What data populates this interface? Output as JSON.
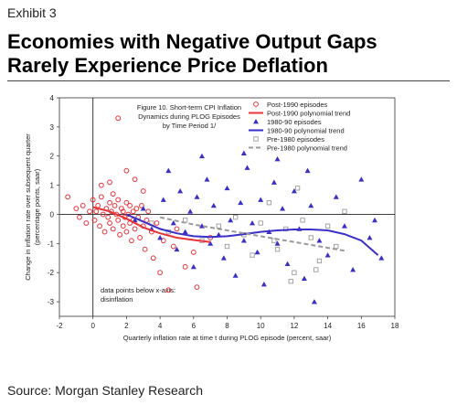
{
  "header": {
    "exhibit": "Exhibit 3",
    "title_line1": "Economies with Negative Output Gaps",
    "title_line2": "Rarely Experience Price Deflation"
  },
  "footer": {
    "source": "Source: Morgan Stanley Research"
  },
  "chart_data": {
    "type": "scatter",
    "title_lines": [
      "Figure 10. Short-term CPI Inflation",
      "Dynamics during PLOG Episodes",
      "by Time Period 1/"
    ],
    "xlabel": "Quarterly inflation rate at time t during PLOG episode (percent, saar)",
    "ylabel_lines": [
      "Change in inflation rate over subsequent quarter",
      "(percentage points, saar)"
    ],
    "xlim": [
      -2,
      18
    ],
    "ylim": [
      -3.5,
      4
    ],
    "xticks": [
      -2,
      0,
      2,
      4,
      6,
      8,
      10,
      12,
      14,
      16,
      18
    ],
    "yticks": [
      4,
      3,
      2,
      1,
      0,
      -1,
      -2,
      -3
    ],
    "annotation": [
      "data points below x-axis:",
      "disinflation"
    ],
    "colors": {
      "post1990": "#e8333a",
      "p1980_90": "#3a2fc7",
      "pre1980": "#9a9a9a"
    },
    "series": [
      {
        "name": "Post-1990 episodes",
        "marker": "circle",
        "points": [
          [
            -1.5,
            0.6
          ],
          [
            -1.0,
            0.2
          ],
          [
            -0.8,
            -0.1
          ],
          [
            -0.6,
            0.3
          ],
          [
            -0.4,
            -0.3
          ],
          [
            -0.2,
            0.1
          ],
          [
            0.0,
            0.5
          ],
          [
            0.1,
            -0.2
          ],
          [
            0.2,
            0.1
          ],
          [
            0.3,
            0.3
          ],
          [
            0.4,
            -0.4
          ],
          [
            0.5,
            0.6
          ],
          [
            0.6,
            0.0
          ],
          [
            0.7,
            -0.6
          ],
          [
            0.8,
            0.2
          ],
          [
            0.9,
            -0.1
          ],
          [
            1.0,
            0.4
          ],
          [
            1.0,
            -0.3
          ],
          [
            1.1,
            0.1
          ],
          [
            1.2,
            0.7
          ],
          [
            1.2,
            -0.5
          ],
          [
            1.3,
            0.3
          ],
          [
            1.4,
            0.0
          ],
          [
            1.5,
            -0.2
          ],
          [
            1.5,
            0.5
          ],
          [
            1.6,
            -0.7
          ],
          [
            1.7,
            0.2
          ],
          [
            1.8,
            -0.4
          ],
          [
            1.8,
            0.1
          ],
          [
            1.9,
            -0.1
          ],
          [
            2.0,
            0.4
          ],
          [
            2.0,
            -0.6
          ],
          [
            2.1,
            0.0
          ],
          [
            2.2,
            -0.3
          ],
          [
            2.2,
            0.3
          ],
          [
            2.3,
            -0.9
          ],
          [
            2.4,
            0.1
          ],
          [
            2.4,
            -0.2
          ],
          [
            2.5,
            -0.5
          ],
          [
            2.6,
            0.2
          ],
          [
            2.7,
            -0.1
          ],
          [
            2.8,
            -0.8
          ],
          [
            2.9,
            0.3
          ],
          [
            3.0,
            -0.4
          ],
          [
            3.1,
            -1.2
          ],
          [
            3.2,
            -0.2
          ],
          [
            3.3,
            0.1
          ],
          [
            3.5,
            -0.6
          ],
          [
            3.6,
            -1.5
          ],
          [
            3.8,
            -0.3
          ],
          [
            4.0,
            -2.0
          ],
          [
            4.2,
            -0.9
          ],
          [
            4.5,
            -2.6
          ],
          [
            4.8,
            -1.1
          ],
          [
            5.0,
            -0.5
          ],
          [
            5.5,
            -1.8
          ],
          [
            6.0,
            -1.3
          ],
          [
            6.2,
            -2.5
          ],
          [
            7.0,
            -0.8
          ],
          [
            1.5,
            3.3
          ],
          [
            2.0,
            1.5
          ],
          [
            0.5,
            1.0
          ],
          [
            3.0,
            0.8
          ],
          [
            2.5,
            1.2
          ],
          [
            1.0,
            1.1
          ]
        ]
      },
      {
        "name": "Post-1990 polynomial trend",
        "line": "solid",
        "points": [
          [
            0.0,
            0.25
          ],
          [
            1.0,
            0.1
          ],
          [
            2.0,
            -0.15
          ],
          [
            3.0,
            -0.45
          ],
          [
            4.0,
            -0.65
          ],
          [
            5.0,
            -0.8
          ],
          [
            6.0,
            -0.88
          ],
          [
            7.0,
            -0.95
          ]
        ]
      },
      {
        "name": "1980-90 episodes",
        "marker": "triangle",
        "points": [
          [
            2.5,
            -0.2
          ],
          [
            3.0,
            0.2
          ],
          [
            3.5,
            -0.5
          ],
          [
            4.0,
            -0.8
          ],
          [
            4.2,
            0.5
          ],
          [
            4.5,
            1.5
          ],
          [
            4.8,
            -0.3
          ],
          [
            5.0,
            -1.2
          ],
          [
            5.2,
            0.8
          ],
          [
            5.5,
            -0.6
          ],
          [
            5.8,
            0.1
          ],
          [
            6.0,
            -1.8
          ],
          [
            6.2,
            0.6
          ],
          [
            6.5,
            -0.4
          ],
          [
            6.8,
            1.2
          ],
          [
            7.0,
            -1.0
          ],
          [
            7.2,
            0.3
          ],
          [
            7.5,
            -0.7
          ],
          [
            7.8,
            -1.5
          ],
          [
            8.0,
            0.9
          ],
          [
            8.2,
            -0.2
          ],
          [
            8.5,
            -2.1
          ],
          [
            8.8,
            0.4
          ],
          [
            9.0,
            -0.9
          ],
          [
            9.2,
            1.6
          ],
          [
            9.5,
            -0.3
          ],
          [
            9.8,
            -1.3
          ],
          [
            10.0,
            0.5
          ],
          [
            10.2,
            -2.4
          ],
          [
            10.5,
            -0.6
          ],
          [
            10.8,
            1.1
          ],
          [
            11.0,
            -1.0
          ],
          [
            11.3,
            0.2
          ],
          [
            11.6,
            -1.7
          ],
          [
            12.0,
            0.8
          ],
          [
            12.3,
            -0.5
          ],
          [
            12.6,
            -2.2
          ],
          [
            13.0,
            0.3
          ],
          [
            13.5,
            -0.9
          ],
          [
            14.0,
            -1.4
          ],
          [
            14.5,
            0.6
          ],
          [
            15.0,
            -0.4
          ],
          [
            15.5,
            -1.9
          ],
          [
            16.0,
            1.2
          ],
          [
            16.5,
            -0.8
          ],
          [
            16.8,
            -0.2
          ],
          [
            17.2,
            -1.5
          ],
          [
            11.0,
            1.9
          ],
          [
            9.0,
            2.1
          ],
          [
            13.2,
            -3.0
          ],
          [
            6.5,
            2.0
          ],
          [
            12.8,
            1.5
          ]
        ]
      },
      {
        "name": "1980-90 polynomial trend",
        "line": "solid",
        "points": [
          [
            2.0,
            0.0
          ],
          [
            3.0,
            -0.25
          ],
          [
            4.0,
            -0.5
          ],
          [
            5.0,
            -0.65
          ],
          [
            6.0,
            -0.75
          ],
          [
            7.0,
            -0.78
          ],
          [
            8.0,
            -0.75
          ],
          [
            9.0,
            -0.68
          ],
          [
            10.0,
            -0.6
          ],
          [
            11.0,
            -0.55
          ],
          [
            12.0,
            -0.52
          ],
          [
            13.0,
            -0.52
          ],
          [
            14.0,
            -0.55
          ],
          [
            15.0,
            -0.68
          ],
          [
            16.0,
            -0.9
          ],
          [
            17.0,
            -1.4
          ]
        ]
      },
      {
        "name": "Pre-1980 episodes",
        "marker": "square",
        "points": [
          [
            3.5,
            -0.3
          ],
          [
            4.5,
            -0.6
          ],
          [
            5.5,
            -0.2
          ],
          [
            6.5,
            -0.9
          ],
          [
            7.5,
            -0.4
          ],
          [
            8.0,
            -1.1
          ],
          [
            8.5,
            -0.1
          ],
          [
            9.0,
            -0.7
          ],
          [
            9.5,
            -1.4
          ],
          [
            10.0,
            -0.3
          ],
          [
            10.5,
            0.4
          ],
          [
            11.0,
            -1.2
          ],
          [
            11.5,
            -0.5
          ],
          [
            12.0,
            -2.0
          ],
          [
            12.5,
            -0.2
          ],
          [
            13.0,
            -0.8
          ],
          [
            13.5,
            -1.6
          ],
          [
            14.0,
            -0.4
          ],
          [
            14.5,
            -1.1
          ],
          [
            15.0,
            0.1
          ],
          [
            12.2,
            0.9
          ],
          [
            11.8,
            -2.3
          ],
          [
            13.3,
            -1.9
          ],
          [
            10.8,
            -0.9
          ]
        ]
      },
      {
        "name": "Pre-1980 polynomial trend",
        "line": "dashed",
        "points": [
          [
            4.0,
            -0.1
          ],
          [
            6.0,
            -0.35
          ],
          [
            8.0,
            -0.55
          ],
          [
            10.0,
            -0.75
          ],
          [
            12.0,
            -0.95
          ],
          [
            14.0,
            -1.15
          ],
          [
            15.0,
            -1.25
          ]
        ]
      }
    ]
  }
}
